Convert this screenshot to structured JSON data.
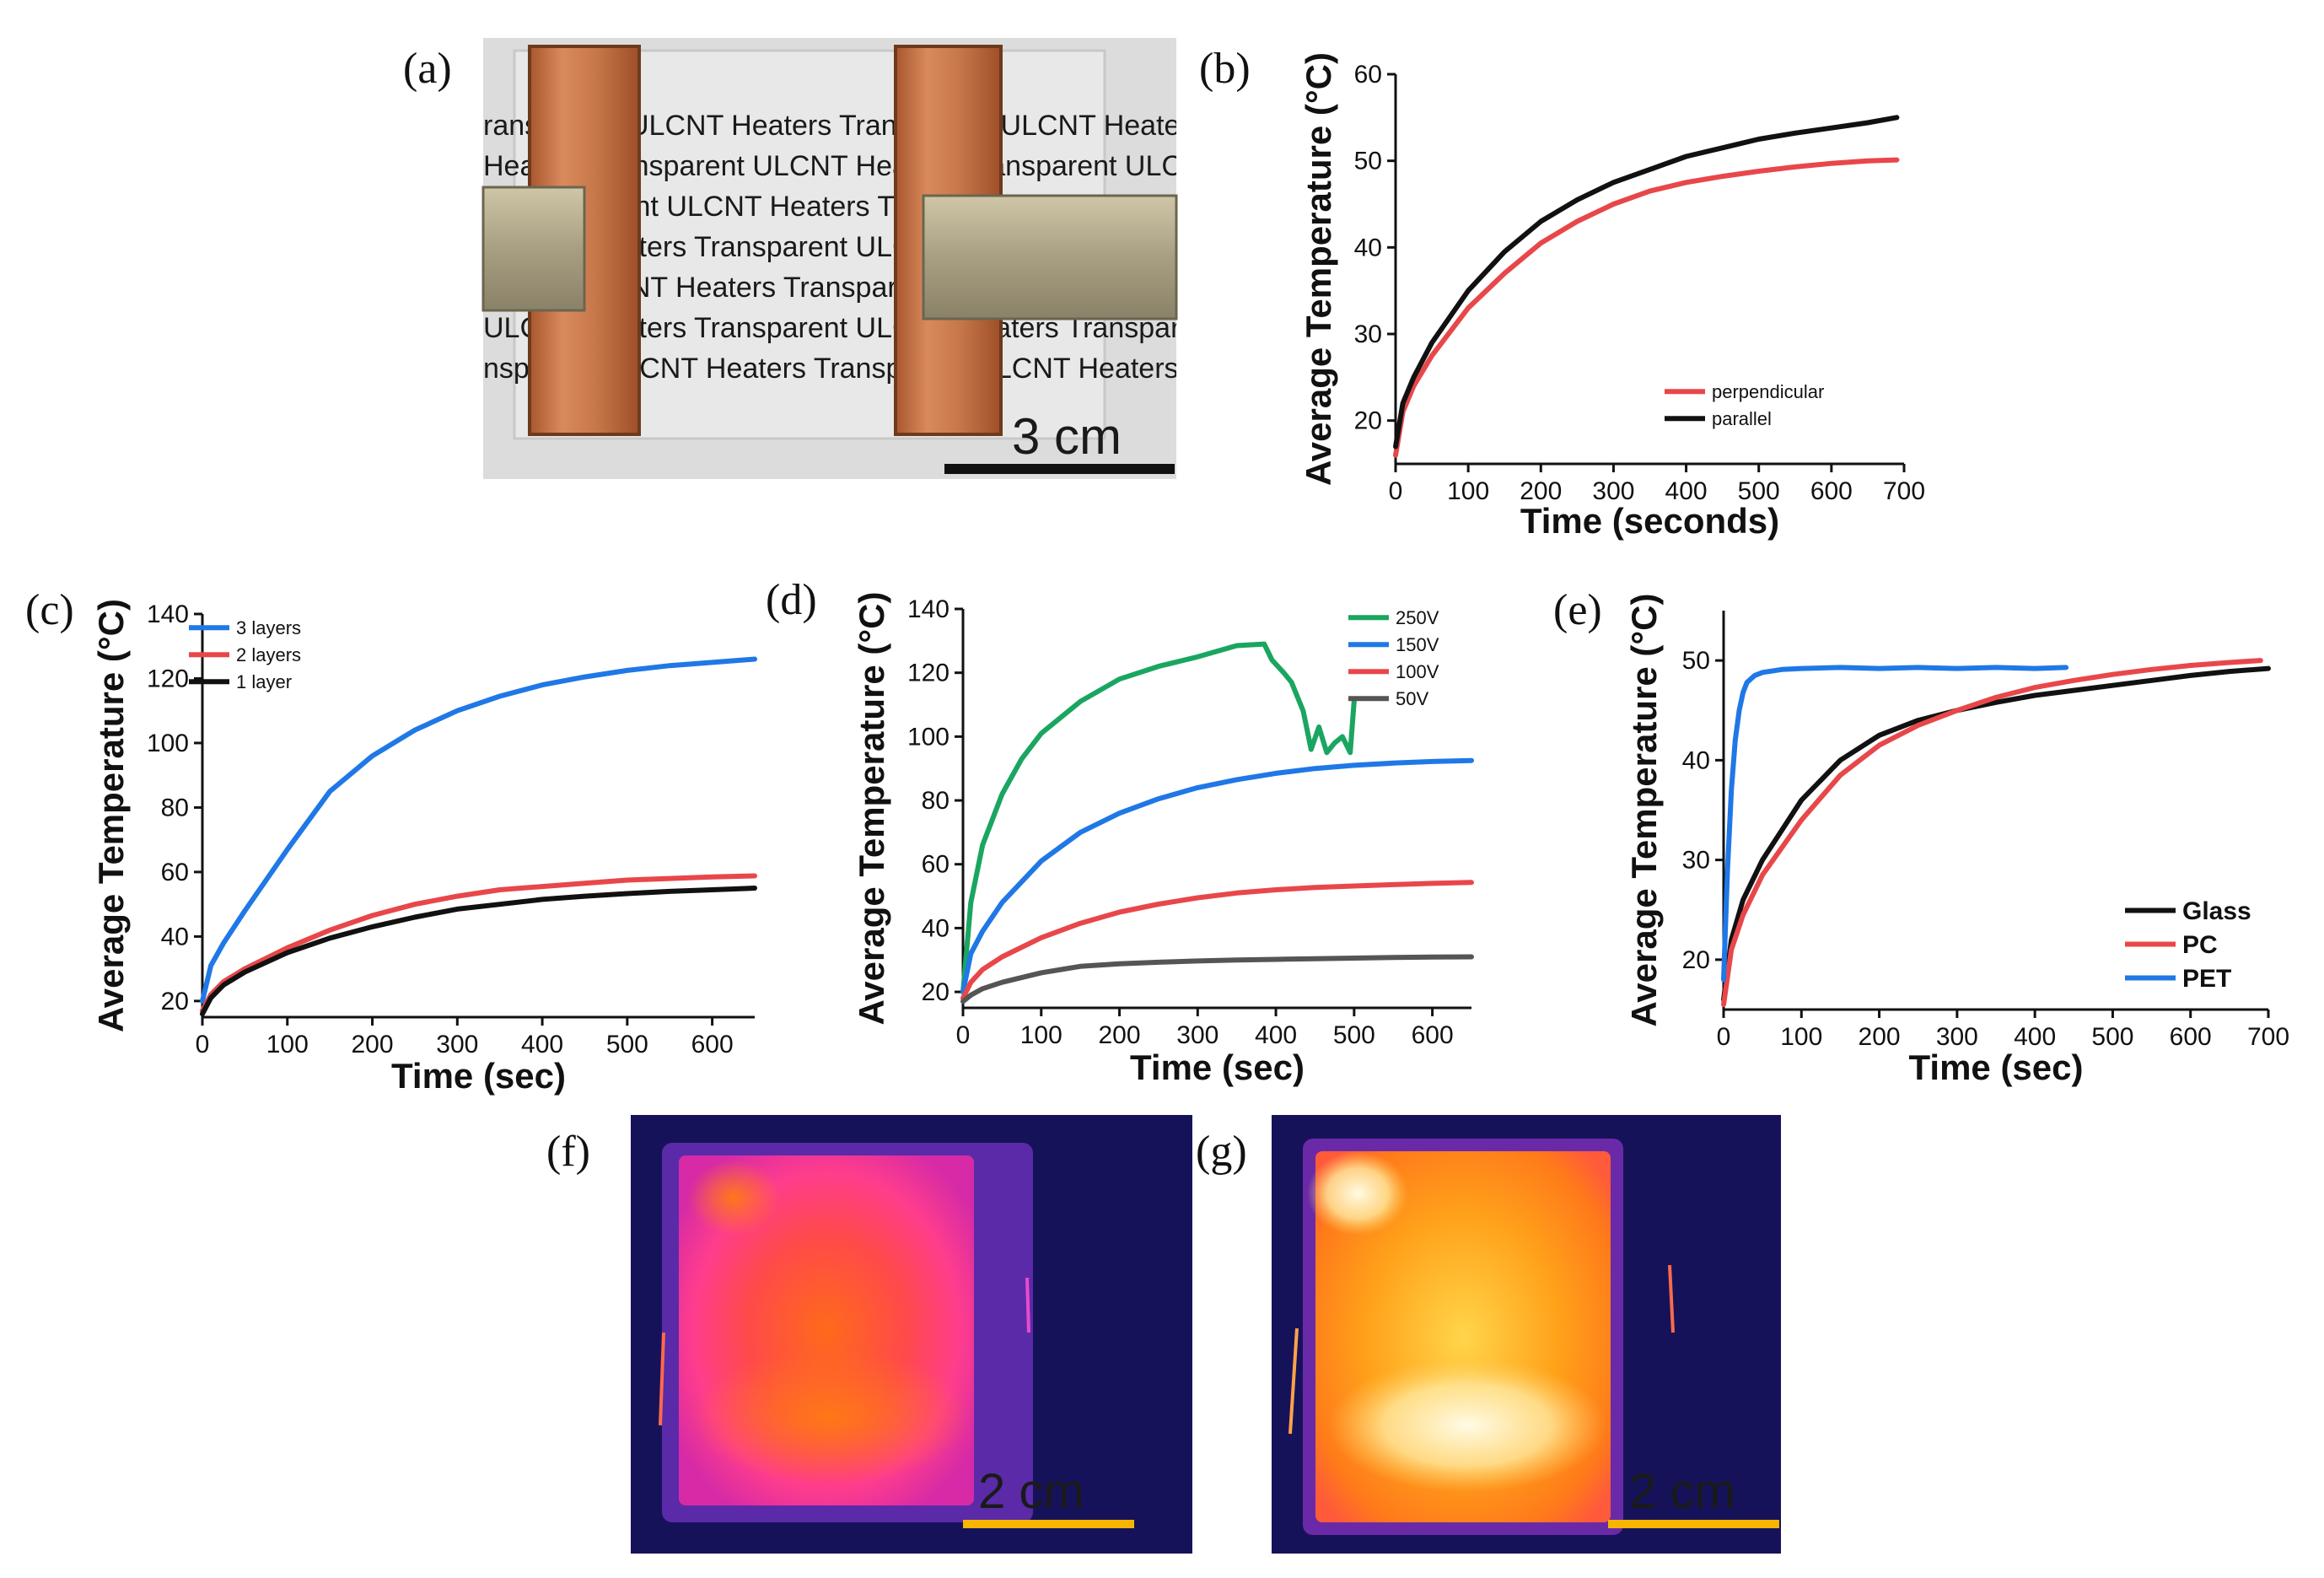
{
  "panel_labels": {
    "a": "(a)",
    "b": "(b)",
    "c": "(c)",
    "d": "(d)",
    "e": "(e)",
    "f": "(f)",
    "g": "(g)"
  },
  "photo_a": {
    "scale_bar": "3 cm",
    "text_lines": [
      "ransparent ULCNT Heaters Transparent ULCNT Heaters",
      "Heaters Transparent ULCNT Heaters Transparent ULCNT",
      "s Transparent ULCNT Heaters Transparent ULCNT Heaters",
      "ULCNT Heaters Transparent ULCNT Heaters Transparent",
      "parent ULCNT Heaters Transparent ULCNT Heaters Tran",
      "ULCNT Heaters Transparent ULCNT Heaters Transparent",
      "nsparent ULCNT Heaters Transparent ULCNT Heaters"
    ]
  },
  "thermal_f": {
    "scale_bar": "2 cm"
  },
  "thermal_g": {
    "scale_bar": "2 cm"
  },
  "colors": {
    "red": "#e8474a",
    "black": "#111111",
    "blue": "#1f78e6",
    "green": "#1aa660",
    "gray": "#555555",
    "scalebar_yellow": "#f7b500"
  },
  "chart_data": [
    {
      "id": "b",
      "type": "line",
      "xlabel": "Time (seconds)",
      "ylabel": "Average Temperature (°C)",
      "xlim": [
        0,
        700
      ],
      "ylim": [
        15,
        60
      ],
      "xticks": [
        0,
        100,
        200,
        300,
        400,
        500,
        600,
        700
      ],
      "yticks": [
        20,
        30,
        40,
        50,
        60
      ],
      "legend_position": "bottom-right",
      "series": [
        {
          "name": "perpendicular",
          "color": "#e8474a",
          "x": [
            0,
            10,
            25,
            50,
            100,
            150,
            200,
            250,
            300,
            350,
            400,
            450,
            500,
            550,
            600,
            650,
            690
          ],
          "y": [
            16,
            21,
            24,
            27.5,
            33,
            37,
            40.5,
            43,
            45,
            46.5,
            47.5,
            48.2,
            48.8,
            49.3,
            49.7,
            50,
            50.1
          ]
        },
        {
          "name": "parallel",
          "color": "#111111",
          "x": [
            0,
            10,
            25,
            50,
            100,
            150,
            200,
            250,
            300,
            350,
            400,
            450,
            500,
            550,
            600,
            650,
            690
          ],
          "y": [
            17,
            22,
            25,
            29,
            35,
            39.5,
            43,
            45.5,
            47.5,
            49,
            50.5,
            51.5,
            52.5,
            53.2,
            53.8,
            54.4,
            55
          ]
        }
      ]
    },
    {
      "id": "c",
      "type": "line",
      "xlabel": "Time (sec)",
      "ylabel": "Average Temperature (°C)",
      "xlim": [
        0,
        650
      ],
      "ylim": [
        15,
        140
      ],
      "xticks": [
        0,
        100,
        200,
        300,
        400,
        500,
        600
      ],
      "yticks": [
        20,
        40,
        60,
        80,
        100,
        120,
        140
      ],
      "legend_position": "top-left",
      "series": [
        {
          "name": "3 layers",
          "color": "#1f78e6",
          "x": [
            0,
            10,
            25,
            50,
            100,
            150,
            200,
            250,
            300,
            350,
            400,
            450,
            500,
            550,
            600,
            650
          ],
          "y": [
            20,
            31,
            38,
            48,
            67,
            85,
            96,
            104,
            110,
            114.5,
            118,
            120.5,
            122.5,
            124,
            125,
            126
          ]
        },
        {
          "name": "2 layers",
          "color": "#e8474a",
          "x": [
            0,
            10,
            25,
            50,
            100,
            150,
            200,
            250,
            300,
            350,
            400,
            450,
            500,
            550,
            600,
            650
          ],
          "y": [
            17,
            22,
            26,
            30,
            36.5,
            42,
            46.5,
            50,
            52.5,
            54.5,
            55.5,
            56.5,
            57.5,
            58,
            58.5,
            58.8
          ]
        },
        {
          "name": "1 layer",
          "color": "#111111",
          "x": [
            0,
            10,
            25,
            50,
            100,
            150,
            200,
            250,
            300,
            350,
            400,
            450,
            500,
            550,
            600,
            650
          ],
          "y": [
            16,
            21,
            25,
            29,
            35,
            39.5,
            43,
            46,
            48.5,
            50,
            51.5,
            52.5,
            53.3,
            54,
            54.5,
            55
          ]
        }
      ]
    },
    {
      "id": "d",
      "type": "line",
      "xlabel": "Time (sec)",
      "ylabel": "Average Temperature (°C)",
      "xlim": [
        0,
        650
      ],
      "ylim": [
        15,
        140
      ],
      "xticks": [
        0,
        100,
        200,
        300,
        400,
        500,
        600
      ],
      "yticks": [
        20,
        40,
        60,
        80,
        100,
        120,
        140
      ],
      "legend_position": "top-right",
      "series": [
        {
          "name": "250V",
          "color": "#1aa660",
          "x": [
            0,
            10,
            25,
            50,
            75,
            100,
            150,
            200,
            250,
            300,
            350,
            385,
            395,
            410,
            420,
            435,
            445,
            455,
            465,
            475,
            485,
            495,
            500
          ],
          "y": [
            20,
            48,
            66,
            82,
            93,
            101,
            111,
            118,
            122,
            125,
            128.5,
            129,
            124,
            120,
            117,
            108,
            96,
            103,
            95,
            98,
            100,
            95,
            111
          ]
        },
        {
          "name": "150V",
          "color": "#1f78e6",
          "x": [
            0,
            10,
            25,
            50,
            100,
            150,
            200,
            250,
            300,
            350,
            400,
            450,
            500,
            550,
            600,
            650
          ],
          "y": [
            20,
            32,
            39,
            48,
            61,
            70,
            76,
            80.5,
            84,
            86.5,
            88.5,
            90,
            91,
            91.7,
            92.2,
            92.5
          ]
        },
        {
          "name": "100V",
          "color": "#e8474a",
          "x": [
            0,
            10,
            25,
            50,
            100,
            150,
            200,
            250,
            300,
            350,
            400,
            450,
            500,
            550,
            600,
            650
          ],
          "y": [
            18,
            23,
            27,
            31,
            37,
            41.5,
            45,
            47.5,
            49.5,
            51,
            52,
            52.7,
            53.2,
            53.6,
            54,
            54.3
          ]
        },
        {
          "name": "50V",
          "color": "#555555",
          "x": [
            0,
            10,
            25,
            50,
            100,
            150,
            200,
            250,
            300,
            350,
            400,
            450,
            500,
            550,
            600,
            650
          ],
          "y": [
            17,
            19,
            21,
            23,
            26,
            28,
            28.8,
            29.3,
            29.7,
            30,
            30.2,
            30.4,
            30.6,
            30.8,
            30.9,
            31
          ]
        }
      ]
    },
    {
      "id": "e",
      "type": "line",
      "xlabel": "Time (sec)",
      "ylabel": "Average Temperature (°C)",
      "xlim": [
        0,
        700
      ],
      "ylim": [
        15,
        55
      ],
      "xticks": [
        0,
        100,
        200,
        300,
        400,
        500,
        600,
        700
      ],
      "yticks": [
        20,
        30,
        40,
        50
      ],
      "legend_position": "bottom-right",
      "series": [
        {
          "name": "Glass",
          "color": "#111111",
          "x": [
            0,
            10,
            25,
            50,
            100,
            150,
            200,
            250,
            300,
            350,
            400,
            450,
            500,
            550,
            600,
            650,
            700
          ],
          "y": [
            16,
            22,
            26,
            30,
            36,
            40,
            42.5,
            44,
            45,
            45.8,
            46.5,
            47,
            47.5,
            48,
            48.5,
            48.9,
            49.2
          ]
        },
        {
          "name": "PC",
          "color": "#e8474a",
          "x": [
            0,
            10,
            25,
            50,
            100,
            150,
            200,
            250,
            300,
            350,
            400,
            450,
            500,
            550,
            600,
            650,
            690
          ],
          "y": [
            15.5,
            21,
            24.5,
            28.5,
            34,
            38.5,
            41.5,
            43.5,
            45,
            46.3,
            47.3,
            48,
            48.6,
            49.1,
            49.5,
            49.8,
            50
          ]
        },
        {
          "name": "PET",
          "color": "#1f78e6",
          "x": [
            0,
            5,
            10,
            15,
            20,
            25,
            30,
            40,
            50,
            75,
            100,
            150,
            200,
            250,
            300,
            350,
            400,
            440
          ],
          "y": [
            18,
            29,
            37,
            42,
            45,
            46.8,
            47.8,
            48.5,
            48.8,
            49.1,
            49.2,
            49.3,
            49.2,
            49.3,
            49.2,
            49.3,
            49.2,
            49.3
          ]
        }
      ]
    }
  ]
}
